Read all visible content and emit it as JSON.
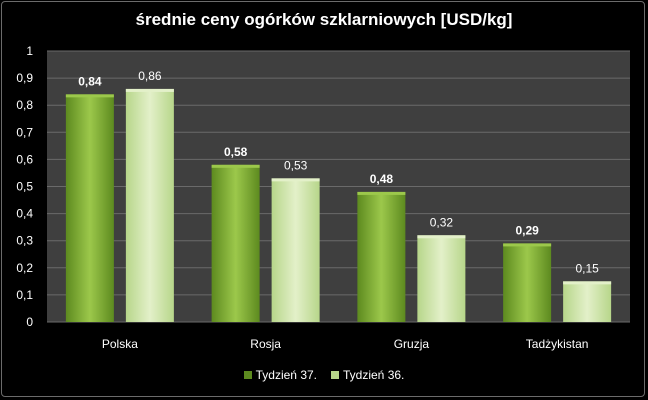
{
  "colors": {
    "series1_dark": "#5d8a1f",
    "series1_light": "#9cc84b",
    "series2_dark": "#b7d68a",
    "series2_light": "#e3f0c9",
    "plot_bg": "#3f3f3f",
    "grid": "#6a6a6a"
  },
  "chart_data": {
    "type": "bar",
    "title": "średnie ceny ogórków szklarniowych [USD/kg]",
    "categories": [
      "Polska",
      "Rosja",
      "Gruzja",
      "Tadżykistan"
    ],
    "series": [
      {
        "name": "Tydzień 37.",
        "values": [
          0.84,
          0.58,
          0.48,
          0.29
        ],
        "labels": [
          "0,84",
          "0,58",
          "0,48",
          "0,29"
        ]
      },
      {
        "name": "Tydzień 36.",
        "values": [
          0.86,
          0.53,
          0.32,
          0.15
        ],
        "labels": [
          "0,86",
          "0,53",
          "0,32",
          "0,15"
        ]
      }
    ],
    "ylim": [
      0,
      1
    ],
    "yticks": [
      "0",
      "0,1",
      "0,2",
      "0,3",
      "0,4",
      "0,5",
      "0,6",
      "0,7",
      "0,8",
      "0,9",
      "1"
    ],
    "grid": true,
    "legend_position": "bottom"
  }
}
